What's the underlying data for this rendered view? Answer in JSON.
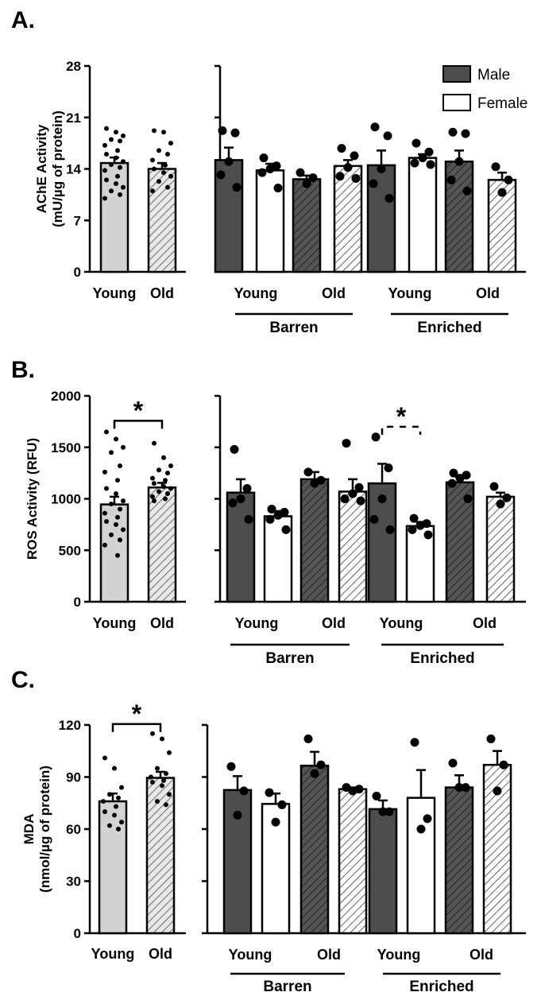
{
  "colors": {
    "light_gray": "#d3d3d3",
    "dark_gray": "#4d4d4d",
    "white": "#ffffff",
    "black": "#000000"
  },
  "legend": [
    {
      "name": "Male",
      "fill": "#4d4d4d"
    },
    {
      "name": "Female",
      "fill": "#ffffff"
    }
  ],
  "chart_data": [
    {
      "panel": "A.",
      "type": "bar",
      "ylabel": "AChE Activity\n(mU/µg of protein)",
      "ylim": [
        0,
        28
      ],
      "yticks": [
        0,
        7,
        14,
        21,
        28
      ],
      "categories": [
        "Young",
        "Old"
      ],
      "bars": [
        {
          "label": "Young",
          "mean": 14.8,
          "sem": 0.75,
          "fill": "light-gray",
          "points": [
            19.5,
            19.0,
            18.5,
            18.0,
            17.8,
            17.2,
            16.5,
            16.0,
            15.5,
            15.0,
            14.6,
            14.2,
            13.8,
            13.0,
            12.5,
            12.0,
            11.5,
            11.0,
            10.5,
            10.0
          ]
        },
        {
          "label": "Old",
          "mean": 14.0,
          "sem": 0.8,
          "fill": "hatched-light",
          "points": [
            19.2,
            19.0,
            17.5,
            16.5,
            16.0,
            15.2,
            14.5,
            14.0,
            13.5,
            13.0,
            12.3,
            11.5,
            11.0
          ]
        }
      ],
      "split": {
        "ylim": [
          0,
          28
        ],
        "categories": [
          "Young",
          "Old",
          "Young",
          "Old"
        ],
        "groups": [
          "Barren",
          "Enriched"
        ],
        "bars": [
          {
            "group": "Barren",
            "age": "Young",
            "sex": "Male",
            "mean": 15.2,
            "sem": 1.7,
            "fill": "dark",
            "points": [
              19.2,
              18.9,
              15.0,
              13.2,
              11.5
            ]
          },
          {
            "group": "Barren",
            "age": "Young",
            "sex": "Female",
            "mean": 13.8,
            "sem": 0.9,
            "fill": "white",
            "points": [
              15.5,
              14.4,
              14.0,
              13.5,
              11.4
            ]
          },
          {
            "group": "Barren",
            "age": "Old",
            "sex": "Male",
            "mean": 12.6,
            "sem": 0.5,
            "fill": "dark-hatched",
            "points": [
              13.5,
              12.8,
              12.0
            ]
          },
          {
            "group": "Barren",
            "age": "Old",
            "sex": "Female",
            "mean": 14.4,
            "sem": 0.8,
            "fill": "white-hatched",
            "points": [
              16.8,
              15.8,
              14.2,
              13.0,
              12.7
            ]
          },
          {
            "group": "Enriched",
            "age": "Young",
            "sex": "Male",
            "mean": 14.5,
            "sem": 2.0,
            "fill": "dark",
            "points": [
              19.7,
              18.5,
              14.0,
              12.0,
              10.0
            ]
          },
          {
            "group": "Enriched",
            "age": "Young",
            "sex": "Female",
            "mean": 15.5,
            "sem": 0.5,
            "fill": "white",
            "points": [
              17.5,
              16.3,
              15.5,
              14.8,
              14.6
            ]
          },
          {
            "group": "Enriched",
            "age": "Old",
            "sex": "Male",
            "mean": 15.0,
            "sem": 1.5,
            "fill": "dark-hatched",
            "points": [
              19.0,
              18.8,
              15.0,
              12.5,
              11.0
            ]
          },
          {
            "group": "Enriched",
            "age": "Old",
            "sex": "Female",
            "mean": 12.5,
            "sem": 1.0,
            "fill": "white-hatched",
            "points": [
              14.3,
              12.5,
              10.8
            ]
          }
        ]
      },
      "significance": []
    },
    {
      "panel": "B.",
      "type": "bar",
      "ylabel": "ROS Activity (RFU)",
      "ylim": [
        0,
        2000
      ],
      "yticks": [
        0,
        500,
        1000,
        1500,
        2000
      ],
      "categories": [
        "Young",
        "Old"
      ],
      "bars": [
        {
          "label": "Young",
          "mean": 945,
          "sem": 75,
          "fill": "light-gray",
          "points": [
            1650,
            1580,
            1500,
            1450,
            1320,
            1260,
            1180,
            1100,
            1050,
            980,
            950,
            900,
            860,
            820,
            780,
            750,
            700,
            650,
            600,
            550,
            450
          ]
        },
        {
          "label": "Old",
          "mean": 1110,
          "sem": 45,
          "fill": "hatched-light",
          "points": [
            1540,
            1400,
            1320,
            1280,
            1250,
            1200,
            1180,
            1150,
            1120,
            1100,
            1070,
            1050,
            1020,
            1000,
            980
          ]
        }
      ],
      "split": {
        "ylim": [
          0,
          2000
        ],
        "categories": [
          "Young",
          "Old",
          "Young",
          "Old"
        ],
        "groups": [
          "Barren",
          "Enriched"
        ],
        "bars": [
          {
            "group": "Barren",
            "age": "Young",
            "sex": "Male",
            "mean": 1060,
            "sem": 130,
            "fill": "dark",
            "points": [
              1480,
              1100,
              1000,
              960,
              800
            ]
          },
          {
            "group": "Barren",
            "age": "Young",
            "sex": "Female",
            "mean": 830,
            "sem": 50,
            "fill": "white",
            "points": [
              900,
              870,
              840,
              800,
              700
            ]
          },
          {
            "group": "Barren",
            "age": "Old",
            "sex": "Male",
            "mean": 1190,
            "sem": 70,
            "fill": "dark-hatched",
            "points": [
              1260,
              1180,
              1150
            ]
          },
          {
            "group": "Barren",
            "age": "Old",
            "sex": "Female",
            "mean": 1070,
            "sem": 120,
            "fill": "white-hatched",
            "points": [
              1540,
              1110,
              1050,
              1000,
              980
            ]
          },
          {
            "group": "Enriched",
            "age": "Young",
            "sex": "Male",
            "mean": 1150,
            "sem": 190,
            "fill": "dark",
            "points": [
              1600,
              1300,
              1000,
              800,
              700
            ]
          },
          {
            "group": "Enriched",
            "age": "Young",
            "sex": "Female",
            "mean": 735,
            "sem": 40,
            "fill": "white",
            "points": [
              810,
              760,
              740,
              700,
              650
            ]
          },
          {
            "group": "Enriched",
            "age": "Old",
            "sex": "Male",
            "mean": 1160,
            "sem": 50,
            "fill": "dark-hatched",
            "points": [
              1250,
              1230,
              1200,
              1150,
              1000
            ]
          },
          {
            "group": "Enriched",
            "age": "Old",
            "sex": "Female",
            "mean": 1020,
            "sem": 40,
            "fill": "white-hatched",
            "points": [
              1120,
              1010,
              950
            ]
          }
        ]
      },
      "significance": [
        {
          "text": "*",
          "between": "Young vs Old",
          "style": "solid"
        },
        {
          "text": "*",
          "between": "Enriched Young Male vs Female",
          "style": "dashed"
        }
      ]
    },
    {
      "panel": "C.",
      "type": "bar",
      "ylabel": "MDA\n(nmol/µg of protein)",
      "ylim": [
        0,
        120
      ],
      "yticks": [
        0,
        30,
        60,
        90,
        120
      ],
      "categories": [
        "Young",
        "Old"
      ],
      "bars": [
        {
          "label": "Young",
          "mean": 76,
          "sem": 4.5,
          "fill": "light-gray",
          "points": [
            101,
            95,
            84,
            80,
            78,
            76,
            73,
            70,
            68,
            64,
            62,
            60
          ]
        },
        {
          "label": "Old",
          "mean": 89.5,
          "sem": 3.5,
          "fill": "hatched-light",
          "points": [
            115,
            112,
            104,
            95,
            92,
            90,
            88,
            87,
            85,
            80,
            76,
            74
          ]
        }
      ],
      "split": {
        "ylim": [
          0,
          120
        ],
        "categories": [
          "Young",
          "Old",
          "Young",
          "Old"
        ],
        "groups": [
          "Barren",
          "Enriched"
        ],
        "bars": [
          {
            "group": "Barren",
            "age": "Young",
            "sex": "Male",
            "mean": 82.5,
            "sem": 8,
            "fill": "dark",
            "points": [
              96,
              82,
              68
            ]
          },
          {
            "group": "Barren",
            "age": "Young",
            "sex": "Female",
            "mean": 74.5,
            "sem": 6,
            "fill": "white",
            "points": [
              81,
              74,
              64
            ]
          },
          {
            "group": "Barren",
            "age": "Old",
            "sex": "Male",
            "mean": 96.5,
            "sem": 8,
            "fill": "dark-hatched",
            "points": [
              112,
              97,
              92
            ]
          },
          {
            "group": "Barren",
            "age": "Old",
            "sex": "Female",
            "mean": 83,
            "sem": 1,
            "fill": "white-hatched",
            "points": [
              84,
              83,
              82
            ]
          },
          {
            "group": "Enriched",
            "age": "Young",
            "sex": "Male",
            "mean": 71.5,
            "sem": 5,
            "fill": "dark",
            "points": [
              79,
              70,
              70
            ]
          },
          {
            "group": "Enriched",
            "age": "Young",
            "sex": "Female",
            "mean": 78,
            "sem": 16,
            "fill": "white",
            "points": [
              110,
              66,
              60
            ]
          },
          {
            "group": "Enriched",
            "age": "Old",
            "sex": "Male",
            "mean": 84,
            "sem": 7,
            "fill": "dark-hatched",
            "points": [
              98,
              84,
              84
            ]
          },
          {
            "group": "Enriched",
            "age": "Old",
            "sex": "Female",
            "mean": 97,
            "sem": 8,
            "fill": "white-hatched",
            "points": [
              112,
              97,
              82
            ]
          }
        ]
      },
      "significance": [
        {
          "text": "*",
          "between": "Young vs Old",
          "style": "solid"
        }
      ]
    }
  ]
}
